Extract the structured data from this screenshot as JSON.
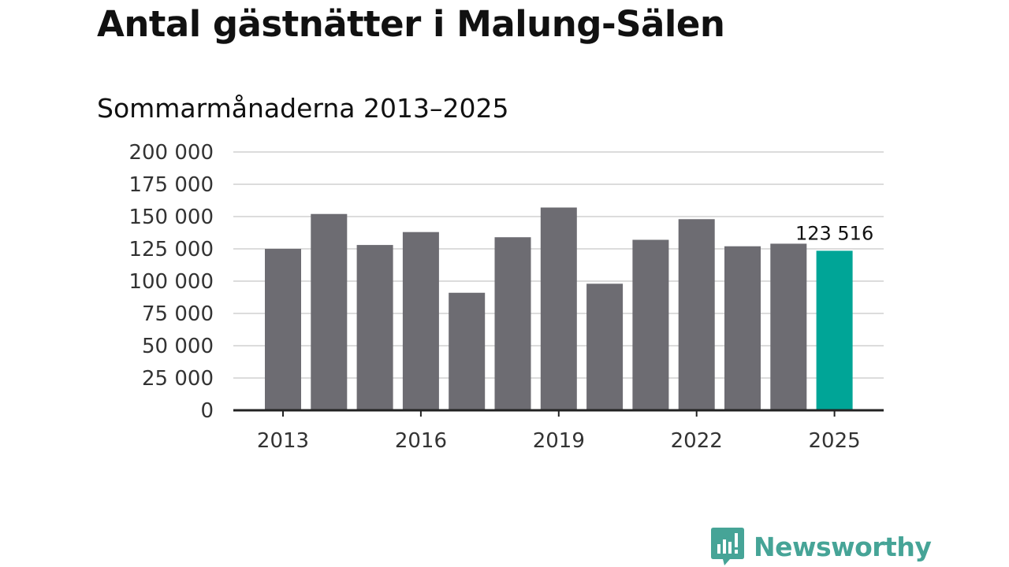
{
  "title": "Antal gästnätter i Malung-Sälen",
  "subtitle": "Sommarmånaderna 2013–2025",
  "brand": {
    "name": "Newsworthy",
    "icon": "newsworthy-logo-icon",
    "color": "#46a497"
  },
  "chart_data": {
    "type": "bar",
    "categories": [
      "2013",
      "2014",
      "2015",
      "2016",
      "2017",
      "2018",
      "2019",
      "2020",
      "2021",
      "2022",
      "2023",
      "2024",
      "2025"
    ],
    "values": [
      125000,
      152000,
      128000,
      138000,
      91000,
      134000,
      157000,
      98000,
      132000,
      148000,
      127000,
      129000,
      123516
    ],
    "ylim": [
      0,
      200000
    ],
    "yticks": [
      0,
      25000,
      50000,
      75000,
      100000,
      125000,
      150000,
      175000,
      200000
    ],
    "ytick_labels": [
      "0",
      "25 000",
      "50 000",
      "75 000",
      "100 000",
      "125 000",
      "150 000",
      "175 000",
      "200 000"
    ],
    "xtick_labels": [
      "2013",
      "2016",
      "2019",
      "2022",
      "2025"
    ],
    "bar_color": "#6d6c72",
    "highlight_color": "#00a597",
    "highlight_category": "2025",
    "data_label": {
      "category": "2025",
      "text": "123 516"
    },
    "grid": true
  }
}
